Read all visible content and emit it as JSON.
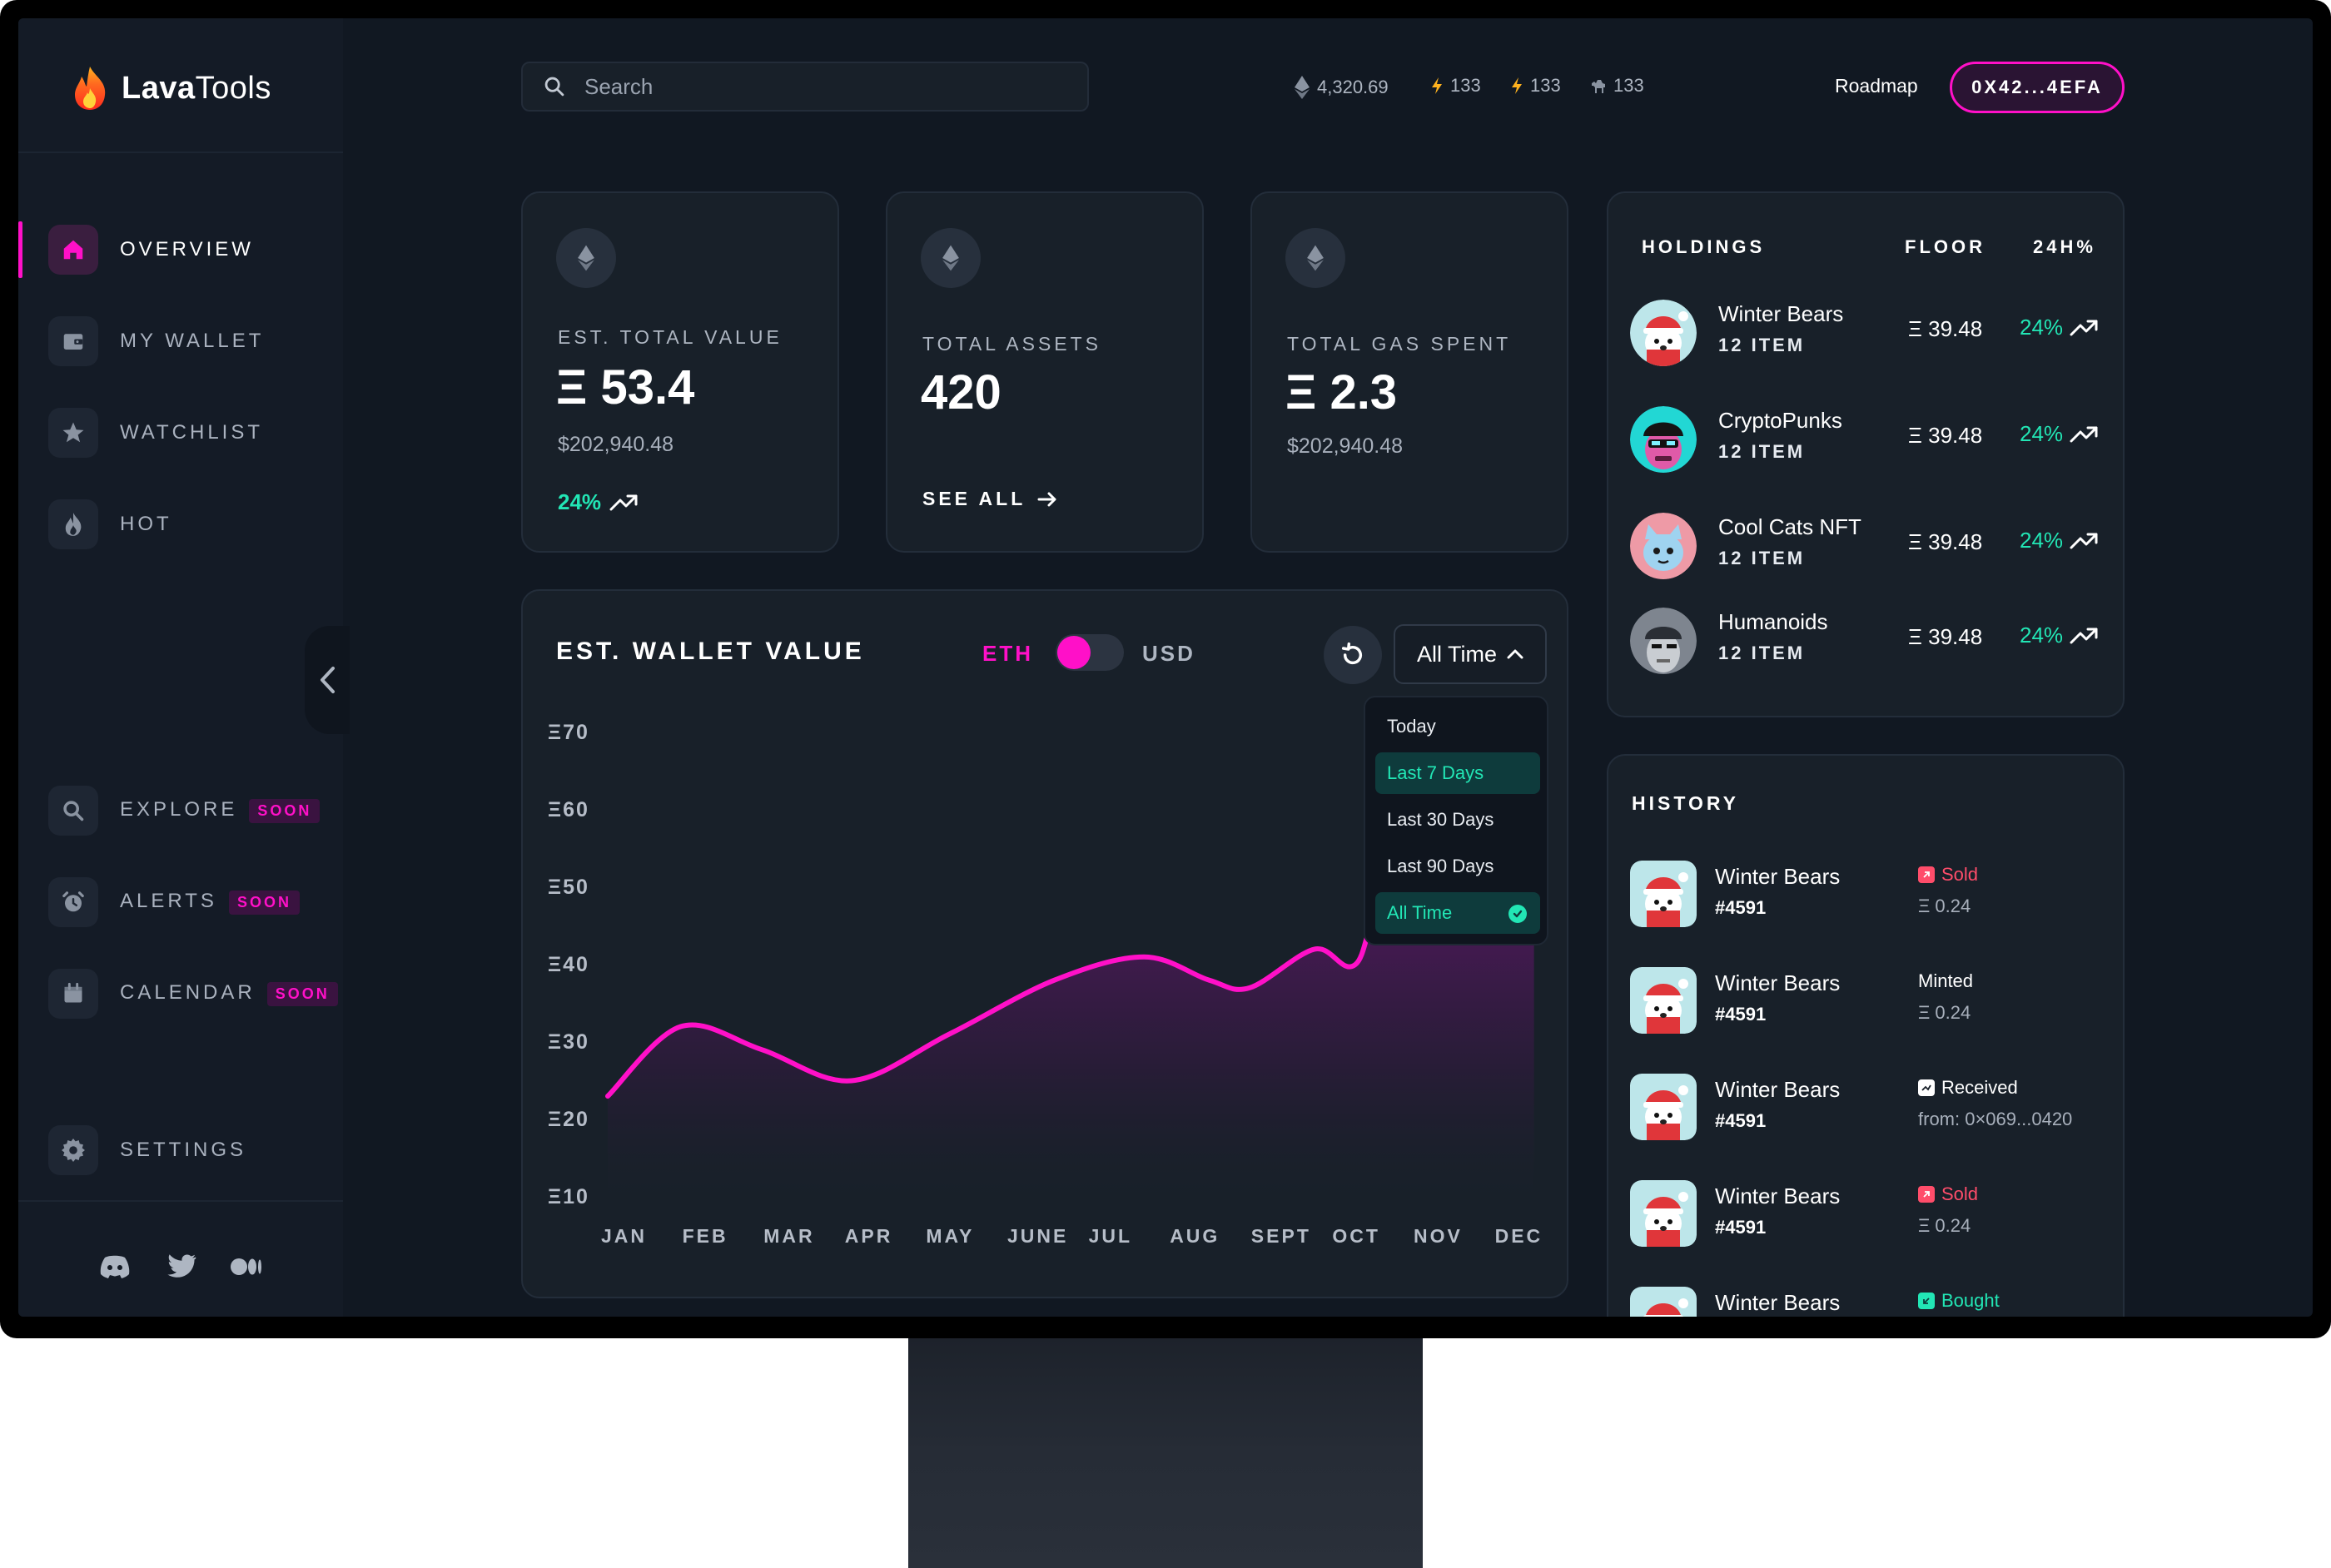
{
  "app": {
    "brand_bold": "Lava",
    "brand_light": "Tools"
  },
  "search": {
    "placeholder": "Search"
  },
  "header": {
    "eth_price": "4,320.69",
    "stat1": "133",
    "stat2": "133",
    "stat3": "133",
    "roadmap": "Roadmap",
    "wallet": "0X42...4EFA"
  },
  "sidebar": {
    "items": [
      {
        "label": "OVERVIEW",
        "icon": "home-icon",
        "active": true
      },
      {
        "label": "MY WALLET",
        "icon": "wallet-icon"
      },
      {
        "label": "WATCHLIST",
        "icon": "star-icon"
      },
      {
        "label": "HOT",
        "icon": "flame-icon"
      },
      {
        "label": "EXPLORE",
        "icon": "search-icon",
        "badge": "SOON"
      },
      {
        "label": "ALERTS",
        "icon": "alarm-icon",
        "badge": "SOON"
      },
      {
        "label": "CALENDAR",
        "icon": "calendar-icon",
        "badge": "SOON"
      },
      {
        "label": "SETTINGS",
        "icon": "gear-icon"
      }
    ],
    "socials": [
      "discord-icon",
      "twitter-icon",
      "medium-icon"
    ]
  },
  "cards": {
    "total_value": {
      "label": "EST. TOTAL VALUE",
      "value": "Ξ 53.4",
      "usd": "$202,940.48",
      "pct": "24%"
    },
    "total_assets": {
      "label": "TOTAL ASSETS",
      "value": "420",
      "link": "SEE ALL"
    },
    "gas": {
      "label": "TOTAL GAS SPENT",
      "value": "Ξ 2.3",
      "usd": "$202,940.48"
    }
  },
  "wallet_chart": {
    "title": "EST. WALLET VALUE",
    "toggle_left": "ETH",
    "toggle_right": "USD",
    "range": "All Time",
    "dropdown": [
      {
        "label": "Today"
      },
      {
        "label": "Last 7 Days",
        "highlight": true
      },
      {
        "label": "Last 30 Days"
      },
      {
        "label": "Last 90 Days"
      },
      {
        "label": "All Time",
        "selected": true
      }
    ]
  },
  "chart_data": {
    "type": "area",
    "title": "EST. WALLET VALUE",
    "x_ticks": [
      "JAN",
      "FEB",
      "MAR",
      "APR",
      "MAY",
      "JUNE",
      "JUL",
      "AUG",
      "SEPT",
      "OCT",
      "NOV",
      "DEC"
    ],
    "y_ticks": [
      "Ξ70",
      "Ξ60",
      "Ξ50",
      "Ξ40",
      "Ξ30",
      "Ξ20",
      "Ξ10"
    ],
    "y_values": [
      70,
      60,
      50,
      40,
      30,
      20,
      10
    ],
    "ylim": [
      10,
      70
    ],
    "series": [
      {
        "points": [
          [
            0,
            23
          ],
          [
            0.9,
            32
          ],
          [
            1.9,
            29
          ],
          [
            3.0,
            25
          ],
          [
            4.2,
            31
          ],
          [
            5.5,
            38
          ],
          [
            6.6,
            41
          ],
          [
            7.4,
            38
          ],
          [
            7.9,
            37
          ],
          [
            8.7,
            42
          ],
          [
            9.2,
            40
          ],
          [
            9.7,
            50
          ],
          [
            11.4,
            52
          ]
        ]
      }
    ],
    "grid": false,
    "accent": "#ff10c8"
  },
  "holdings": {
    "headers": {
      "name": "HOLDINGS",
      "floor": "FLOOR",
      "change": "24H%"
    },
    "rows": [
      {
        "name": "Winter Bears",
        "sub": "12 ITEM",
        "floor": "Ξ 39.48",
        "pct": "24%",
        "avatar": "bear"
      },
      {
        "name": "CryptoPunks",
        "sub": "12 ITEM",
        "floor": "Ξ 39.48",
        "pct": "24%",
        "avatar": "punk"
      },
      {
        "name": "Cool Cats NFT",
        "sub": "12 ITEM",
        "floor": "Ξ 39.48",
        "pct": "24%",
        "avatar": "cat"
      },
      {
        "name": "Humanoids",
        "sub": "12 ITEM",
        "floor": "Ξ 39.48",
        "pct": "24%",
        "avatar": "humanoid"
      }
    ]
  },
  "history": {
    "title": "HISTORY",
    "rows": [
      {
        "name": "Winter Bears",
        "id": "#4591",
        "status": "Sold",
        "status_color": "#ff4d6a",
        "detail": "Ξ 0.24"
      },
      {
        "name": "Winter Bears",
        "id": "#4591",
        "status": "Minted",
        "status_color": "#ffffff",
        "detail": "Ξ 0.24"
      },
      {
        "name": "Winter Bears",
        "id": "#4591",
        "status": "Received",
        "status_color": "#ffffff",
        "detail": "from: 0×069...0420"
      },
      {
        "name": "Winter Bears",
        "id": "#4591",
        "status": "Sold",
        "status_color": "#ff4d6a",
        "detail": "Ξ 0.24"
      },
      {
        "name": "Winter Bears",
        "id": "",
        "status": "Bought",
        "status_color": "#22e6b5",
        "detail": ""
      }
    ]
  },
  "colors": {
    "accent": "#ff10c8",
    "positive": "#22e6b5",
    "negative": "#ff4d6a",
    "bg": "#111822",
    "card": "#182029"
  }
}
